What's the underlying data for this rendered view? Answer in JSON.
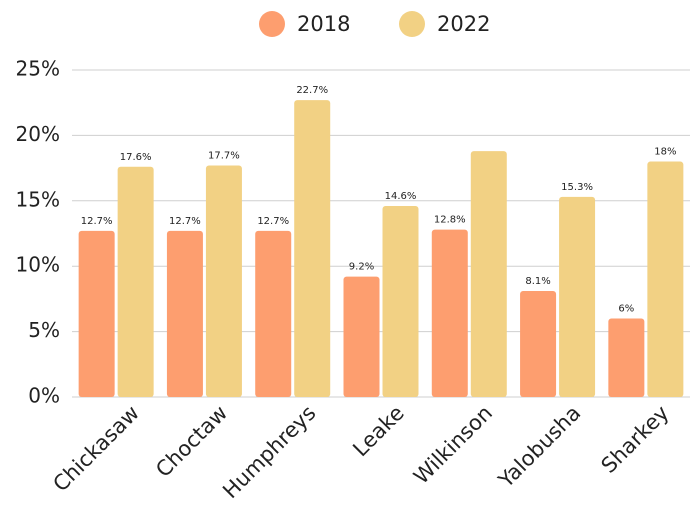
{
  "chart_data": {
    "type": "bar",
    "categories": [
      "Chickasaw",
      "Choctaw",
      "Humphreys",
      "Leake",
      "Wilkinson",
      "Yalobusha",
      "Sharkey"
    ],
    "series": [
      {
        "name": "2018",
        "color": "#fd9e6f",
        "values": [
          12.7,
          12.7,
          12.7,
          9.2,
          12.8,
          8.1,
          6
        ],
        "value_labels": [
          "12.7%",
          "12.7%",
          "12.7%",
          "9.2%",
          "12.8%",
          "8.1%",
          "6%"
        ]
      },
      {
        "name": "2022",
        "color": "#f2d184",
        "values": [
          17.6,
          17.7,
          22.7,
          14.6,
          18.8,
          15.3,
          18
        ],
        "value_labels": [
          "17.6%",
          "17.7%",
          "22.7%",
          "14.6%",
          null,
          "15.3%",
          "18%"
        ]
      }
    ],
    "ylim": [
      0,
      25
    ],
    "yticks": [
      {
        "value": 0,
        "label": "0%"
      },
      {
        "value": 5,
        "label": "5%"
      },
      {
        "value": 10,
        "label": "10%"
      },
      {
        "value": 15,
        "label": "15%"
      },
      {
        "value": 20,
        "label": "20%"
      },
      {
        "value": 25,
        "label": "25%"
      }
    ],
    "grid": true,
    "legend": "top"
  }
}
